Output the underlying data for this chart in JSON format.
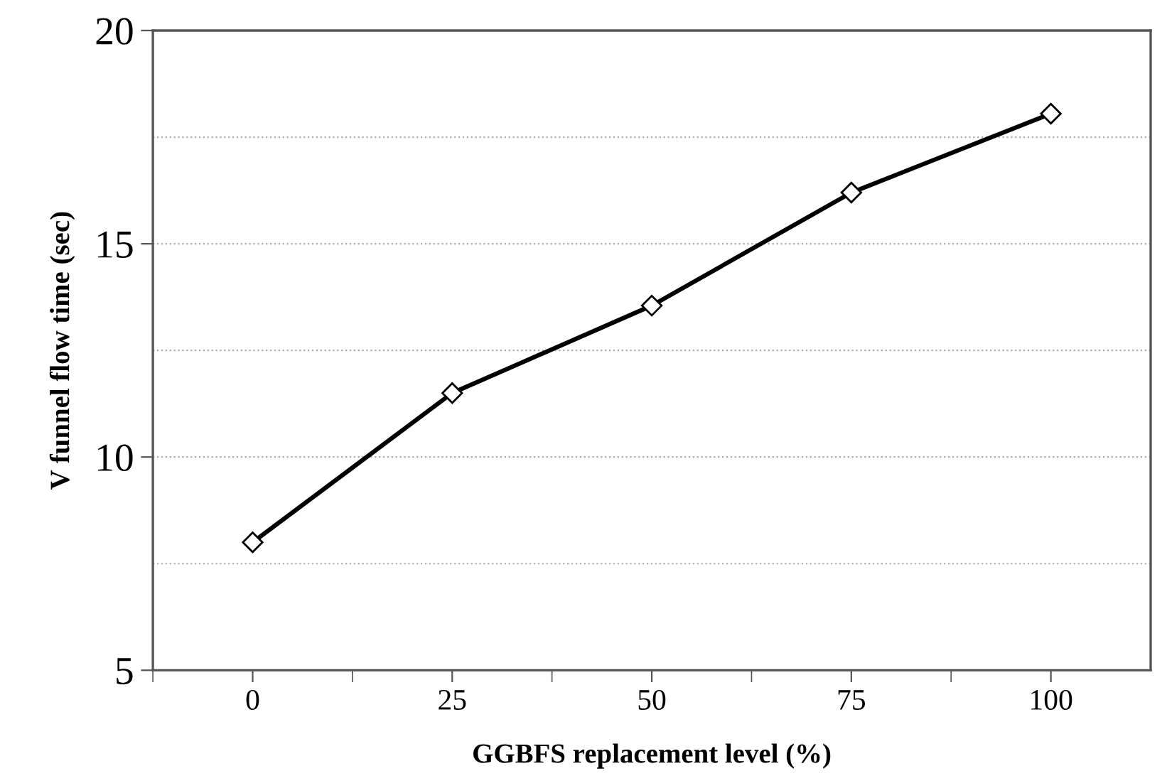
{
  "chart_data": {
    "type": "line",
    "xlabel": "GGBFS replacement level (%)",
    "ylabel": "V funnel flow time (sec)",
    "categories": [
      "0",
      "25",
      "50",
      "75",
      "100"
    ],
    "series": [
      {
        "color": "#000000",
        "values": [
          8.0,
          11.5,
          13.55,
          16.2,
          18.05
        ]
      }
    ],
    "ylim": [
      5,
      20
    ],
    "yticks": [
      5,
      {
        "value": 7.5,
        "label": null
      },
      10,
      {
        "value": 12.5,
        "label": null
      },
      15,
      {
        "value": 17.5,
        "label": null
      },
      20
    ],
    "grid": "y",
    "marker": "diamond",
    "line_style": "solid",
    "legend": false
  }
}
